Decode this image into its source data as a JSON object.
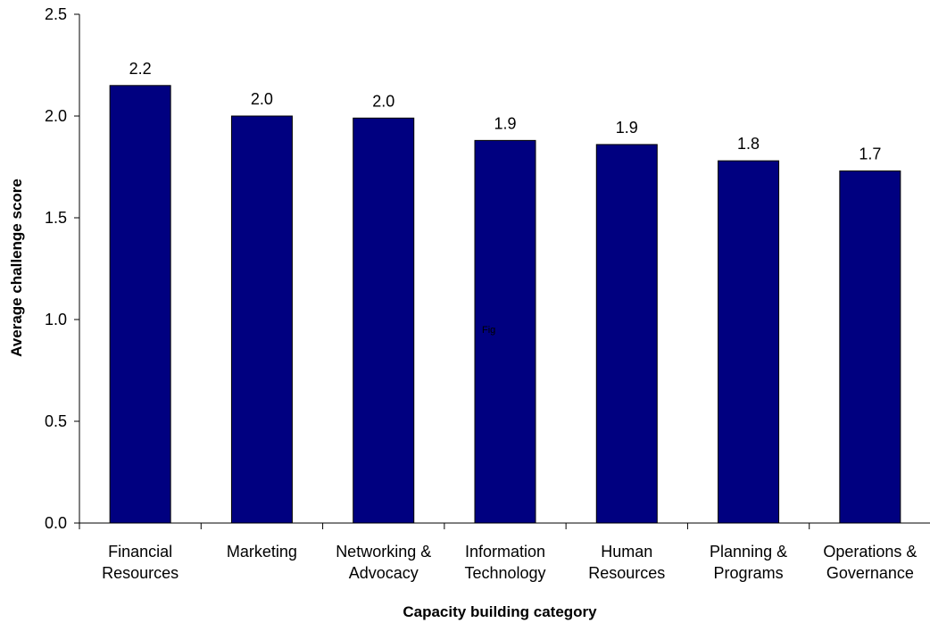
{
  "chart_data": {
    "type": "bar",
    "title": "",
    "xlabel": "Capacity building category",
    "ylabel": "Average challenge score",
    "ylim": [
      0,
      2.5
    ],
    "yticks": [
      "0.0",
      "0.5",
      "1.0",
      "1.5",
      "2.0",
      "2.5"
    ],
    "categories": [
      [
        "Financial",
        "Resources"
      ],
      [
        "Marketing"
      ],
      [
        "Networking &",
        "Advocacy"
      ],
      [
        "Information",
        "Technology"
      ],
      [
        "Human",
        "Resources"
      ],
      [
        "Planning &",
        "Programs"
      ],
      [
        "Operations &",
        "Governance"
      ]
    ],
    "values": [
      2.15,
      2.0,
      1.99,
      1.88,
      1.86,
      1.78,
      1.73
    ],
    "data_labels": [
      "2.2",
      "2.0",
      "2.0",
      "1.9",
      "1.9",
      "1.8",
      "1.7"
    ],
    "bar_color": "#000080",
    "grid": false,
    "legend": "none",
    "annotation": "Fig"
  }
}
